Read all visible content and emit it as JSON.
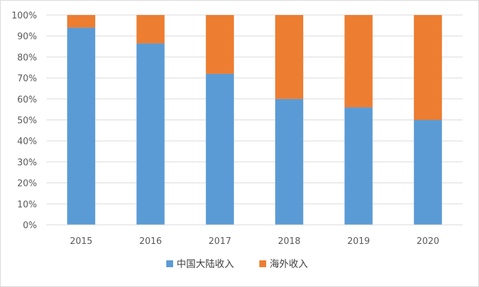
{
  "chart_data": {
    "type": "bar",
    "stacked": true,
    "categories": [
      "2015",
      "2016",
      "2017",
      "2018",
      "2019",
      "2020"
    ],
    "series": [
      {
        "name": "中国大陆收入",
        "color": "#5b9bd5",
        "values": [
          94,
          86.5,
          72,
          60,
          56,
          50
        ]
      },
      {
        "name": "海外收入",
        "color": "#ed7d31",
        "values": [
          6,
          13.5,
          28,
          40,
          44,
          50
        ]
      }
    ],
    "ylim": [
      0,
      100
    ],
    "yticks": [
      "0%",
      "10%",
      "20%",
      "30%",
      "40%",
      "50%",
      "60%",
      "70%",
      "80%",
      "90%",
      "100%"
    ],
    "grid": true,
    "legend": "bottom"
  }
}
